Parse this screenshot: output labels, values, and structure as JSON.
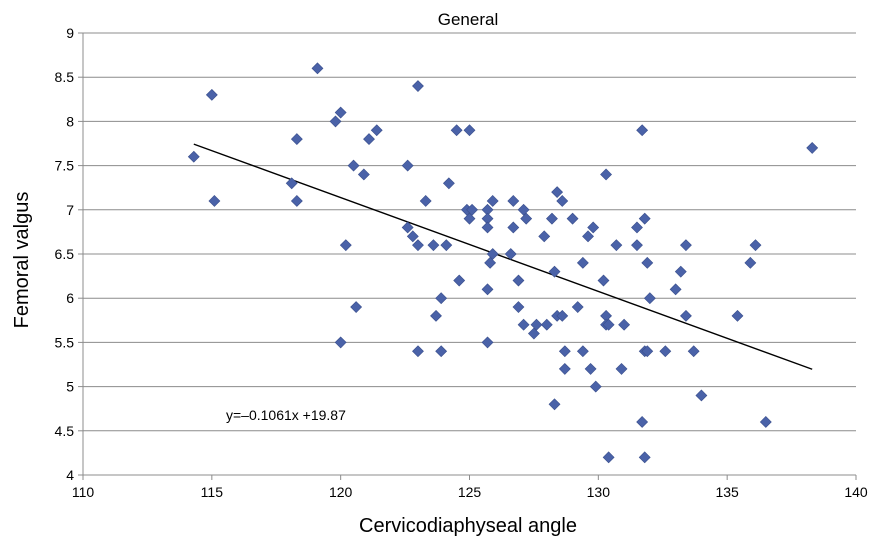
{
  "chart_data": {
    "type": "scatter",
    "title": "General",
    "xlabel": "Cervicodiaphyseal angle",
    "ylabel": "Femoral valgus",
    "xlim": [
      110,
      140
    ],
    "ylim": [
      4,
      9
    ],
    "xticks": [
      "110",
      "115",
      "120",
      "125",
      "130",
      "135",
      "140"
    ],
    "yticks": [
      "4",
      "4.5",
      "5",
      "5.5",
      "6",
      "6.5",
      "7",
      "7.5",
      "8",
      "8.5",
      "9"
    ],
    "grid": true,
    "marker_color": "#4a62a8",
    "trendline": {
      "label": "y=–0.1061x +19.87",
      "slope": -0.1061,
      "intercept": 19.87,
      "x_range": [
        114.3,
        138.3
      ]
    },
    "points": [
      [
        114.3,
        7.6
      ],
      [
        115.0,
        8.3
      ],
      [
        115.1,
        7.1
      ],
      [
        118.1,
        7.3
      ],
      [
        118.3,
        7.8
      ],
      [
        118.3,
        7.1
      ],
      [
        119.1,
        8.6
      ],
      [
        119.8,
        8.0
      ],
      [
        120.0,
        8.1
      ],
      [
        120.0,
        5.5
      ],
      [
        120.2,
        6.6
      ],
      [
        120.5,
        7.5
      ],
      [
        120.6,
        5.9
      ],
      [
        120.9,
        7.4
      ],
      [
        121.1,
        7.8
      ],
      [
        121.4,
        7.9
      ],
      [
        122.6,
        6.8
      ],
      [
        122.6,
        7.5
      ],
      [
        122.8,
        6.7
      ],
      [
        123.0,
        6.6
      ],
      [
        123.0,
        8.4
      ],
      [
        123.0,
        5.4
      ],
      [
        123.3,
        7.1
      ],
      [
        123.6,
        6.6
      ],
      [
        123.7,
        5.8
      ],
      [
        123.9,
        6.0
      ],
      [
        123.9,
        5.4
      ],
      [
        124.1,
        6.6
      ],
      [
        124.2,
        7.3
      ],
      [
        124.5,
        7.9
      ],
      [
        124.6,
        6.2
      ],
      [
        124.9,
        7.0
      ],
      [
        125.0,
        6.9
      ],
      [
        125.0,
        7.9
      ],
      [
        125.1,
        7.0
      ],
      [
        125.7,
        7.0
      ],
      [
        125.7,
        6.9
      ],
      [
        125.7,
        6.8
      ],
      [
        125.7,
        6.1
      ],
      [
        125.7,
        5.5
      ],
      [
        125.8,
        6.4
      ],
      [
        125.9,
        7.1
      ],
      [
        125.9,
        6.5
      ],
      [
        126.6,
        6.5
      ],
      [
        126.7,
        7.1
      ],
      [
        126.7,
        6.8
      ],
      [
        126.9,
        6.2
      ],
      [
        126.9,
        5.9
      ],
      [
        127.1,
        7.0
      ],
      [
        127.1,
        5.7
      ],
      [
        127.2,
        6.9
      ],
      [
        127.5,
        5.6
      ],
      [
        127.6,
        5.7
      ],
      [
        127.9,
        6.7
      ],
      [
        128.0,
        5.7
      ],
      [
        128.2,
        6.9
      ],
      [
        128.3,
        6.3
      ],
      [
        128.3,
        4.8
      ],
      [
        128.4,
        7.2
      ],
      [
        128.4,
        5.8
      ],
      [
        128.6,
        7.1
      ],
      [
        128.6,
        5.8
      ],
      [
        128.7,
        5.4
      ],
      [
        128.7,
        5.2
      ],
      [
        129.0,
        6.9
      ],
      [
        129.2,
        5.9
      ],
      [
        129.4,
        6.4
      ],
      [
        129.4,
        5.4
      ],
      [
        129.6,
        6.7
      ],
      [
        129.7,
        5.2
      ],
      [
        129.8,
        6.8
      ],
      [
        129.9,
        5.0
      ],
      [
        130.2,
        6.2
      ],
      [
        130.3,
        7.4
      ],
      [
        130.3,
        5.8
      ],
      [
        130.3,
        5.7
      ],
      [
        130.4,
        5.7
      ],
      [
        130.4,
        4.2
      ],
      [
        130.7,
        6.6
      ],
      [
        130.9,
        5.2
      ],
      [
        131.0,
        5.7
      ],
      [
        131.5,
        6.8
      ],
      [
        131.5,
        6.6
      ],
      [
        131.7,
        7.9
      ],
      [
        131.7,
        4.6
      ],
      [
        131.8,
        6.9
      ],
      [
        131.8,
        5.4
      ],
      [
        131.8,
        4.2
      ],
      [
        131.9,
        6.4
      ],
      [
        131.9,
        5.4
      ],
      [
        132.0,
        6.0
      ],
      [
        132.6,
        5.4
      ],
      [
        133.0,
        6.1
      ],
      [
        133.2,
        6.3
      ],
      [
        133.4,
        6.6
      ],
      [
        133.4,
        5.8
      ],
      [
        133.7,
        5.4
      ],
      [
        134.0,
        4.9
      ],
      [
        135.4,
        5.8
      ],
      [
        135.9,
        6.4
      ],
      [
        136.1,
        6.6
      ],
      [
        136.5,
        4.6
      ],
      [
        138.3,
        7.7
      ]
    ]
  }
}
